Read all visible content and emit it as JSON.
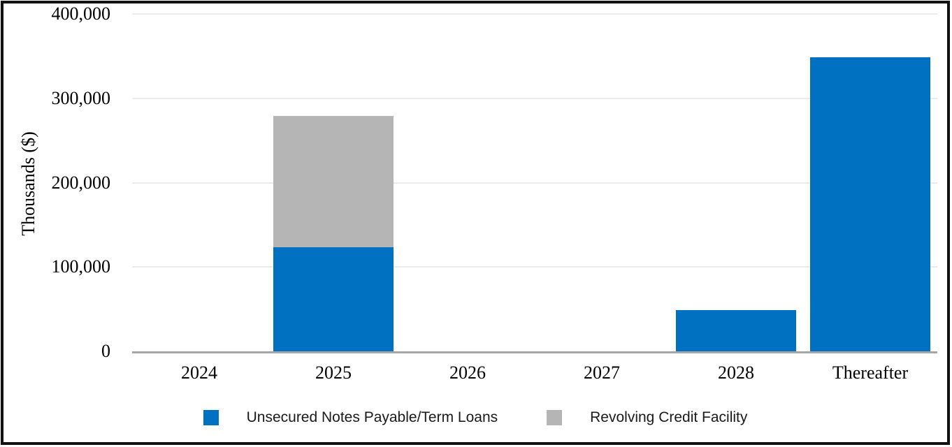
{
  "chart_data": {
    "type": "bar",
    "stacked": true,
    "categories": [
      "2024",
      "2025",
      "2026",
      "2027",
      "2028",
      "Thereafter"
    ],
    "series": [
      {
        "name": "Unsecured Notes Payable/Term Loans",
        "color": "#0070C0",
        "values": [
          0,
          123000,
          0,
          0,
          49000,
          349000
        ]
      },
      {
        "name": "Revolving Credit Facility",
        "color": "#B5B5B5",
        "values": [
          0,
          156000,
          0,
          0,
          0,
          0
        ]
      }
    ],
    "ylabel": "Thousands ($)",
    "xlabel": "",
    "ylim": [
      0,
      400000
    ],
    "yticks": [
      {
        "value": 0,
        "label": "0"
      },
      {
        "value": 100000,
        "label": "100,000"
      },
      {
        "value": 200000,
        "label": "200,000"
      },
      {
        "value": 300000,
        "label": "300,000"
      },
      {
        "value": 400000,
        "label": "400,000"
      }
    ],
    "grid": "horizontal",
    "legend_position": "bottom",
    "colors": {
      "gridline": "#EBEBEB",
      "axis_line": "#A6A6A6",
      "frame_border": "#111111",
      "background": "#FFFFFF",
      "text": "#000000"
    }
  }
}
